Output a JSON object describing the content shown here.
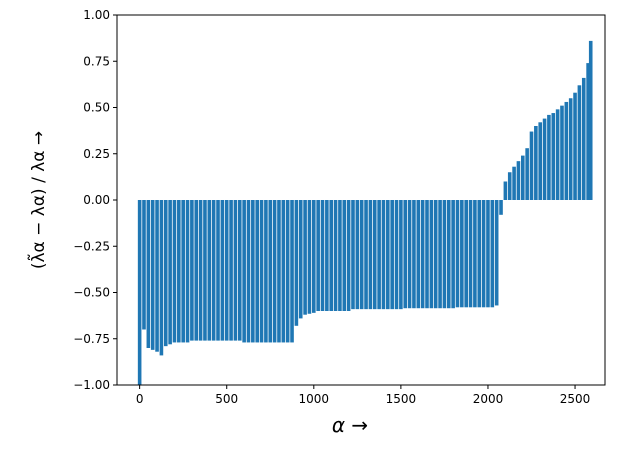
{
  "chart_data": {
    "type": "bar",
    "color": "#1f77b4",
    "xlabel": "α →",
    "ylabel": "(λ̃α − λα) / λα →",
    "x": [
      0,
      25,
      50,
      75,
      100,
      125,
      150,
      175,
      200,
      225,
      250,
      275,
      300,
      325,
      350,
      375,
      400,
      425,
      450,
      475,
      500,
      525,
      550,
      575,
      600,
      625,
      650,
      675,
      700,
      725,
      750,
      775,
      800,
      825,
      850,
      875,
      900,
      925,
      950,
      975,
      1000,
      1025,
      1050,
      1075,
      1100,
      1125,
      1150,
      1175,
      1200,
      1225,
      1250,
      1275,
      1300,
      1325,
      1350,
      1375,
      1400,
      1425,
      1450,
      1475,
      1500,
      1525,
      1550,
      1575,
      1600,
      1625,
      1650,
      1675,
      1700,
      1725,
      1750,
      1775,
      1800,
      1825,
      1850,
      1875,
      1900,
      1925,
      1950,
      1975,
      2000,
      2025,
      2050,
      2075,
      2100,
      2125,
      2150,
      2175,
      2200,
      2225,
      2250,
      2275,
      2300,
      2325,
      2350,
      2375,
      2400,
      2425,
      2450,
      2475,
      2500,
      2525,
      2550,
      2575,
      2590
    ],
    "values": [
      -1.0,
      -0.7,
      -0.8,
      -0.81,
      -0.82,
      -0.84,
      -0.79,
      -0.78,
      -0.77,
      -0.77,
      -0.77,
      -0.77,
      -0.76,
      -0.76,
      -0.76,
      -0.76,
      -0.76,
      -0.76,
      -0.76,
      -0.76,
      -0.76,
      -0.76,
      -0.76,
      -0.76,
      -0.77,
      -0.77,
      -0.77,
      -0.77,
      -0.77,
      -0.77,
      -0.77,
      -0.77,
      -0.77,
      -0.77,
      -0.77,
      -0.77,
      -0.68,
      -0.64,
      -0.62,
      -0.615,
      -0.61,
      -0.6,
      -0.6,
      -0.6,
      -0.6,
      -0.6,
      -0.6,
      -0.6,
      -0.6,
      -0.59,
      -0.59,
      -0.59,
      -0.59,
      -0.59,
      -0.59,
      -0.59,
      -0.59,
      -0.59,
      -0.59,
      -0.59,
      -0.59,
      -0.585,
      -0.585,
      -0.585,
      -0.585,
      -0.585,
      -0.585,
      -0.585,
      -0.585,
      -0.585,
      -0.585,
      -0.585,
      -0.585,
      -0.58,
      -0.58,
      -0.58,
      -0.58,
      -0.58,
      -0.58,
      -0.58,
      -0.58,
      -0.58,
      -0.57,
      -0.08,
      0.1,
      0.15,
      0.18,
      0.21,
      0.24,
      0.28,
      0.37,
      0.4,
      0.42,
      0.44,
      0.46,
      0.47,
      0.49,
      0.51,
      0.53,
      0.55,
      0.58,
      0.62,
      0.66,
      0.74,
      0.86
    ],
    "xlim": [
      -130,
      2672
    ],
    "xticks": [
      0,
      500,
      1000,
      1500,
      2000,
      2500
    ],
    "ylim": [
      -1,
      1
    ],
    "yticks": [
      {
        "value": -1,
        "label": "−1.00"
      },
      {
        "value": -0.75,
        "label": "−0.75"
      },
      {
        "value": -0.5,
        "label": "−0.50"
      },
      {
        "value": -0.25,
        "label": "−0.25"
      },
      {
        "value": 0,
        "label": "0.00"
      },
      {
        "value": 0.25,
        "label": "0.25"
      },
      {
        "value": 0.5,
        "label": "0.50"
      },
      {
        "value": 0.75,
        "label": "0.75"
      },
      {
        "value": 1,
        "label": "1.00"
      }
    ]
  }
}
